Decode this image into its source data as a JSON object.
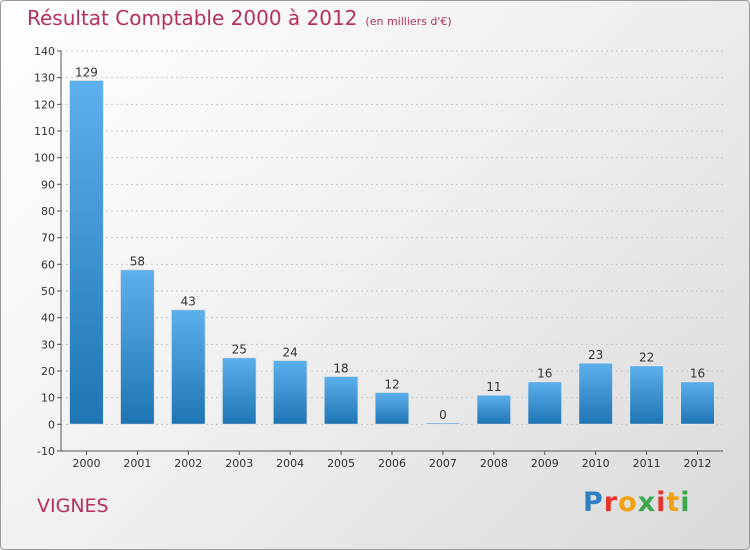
{
  "title": {
    "text": "Résultat Comptable 2000 à 2012",
    "unit": "(en milliers d'€)"
  },
  "commune": "VIGNES",
  "brand": "Proxiti",
  "colors": {
    "title": "#b5305a",
    "bar_light": "#5cb0ec",
    "bar_dark": "#1f74b4",
    "grid": "#c8c8c8",
    "axis": "#555555"
  },
  "chart_data": {
    "type": "bar",
    "categories": [
      "2000",
      "2001",
      "2002",
      "2003",
      "2004",
      "2005",
      "2006",
      "2007",
      "2008",
      "2009",
      "2010",
      "2011",
      "2012"
    ],
    "values": [
      129,
      58,
      43,
      25,
      24,
      18,
      12,
      0,
      11,
      16,
      23,
      22,
      16
    ],
    "ylim": [
      -10,
      140
    ],
    "yticks": [
      -10,
      0,
      10,
      20,
      30,
      40,
      50,
      60,
      70,
      80,
      90,
      100,
      110,
      120,
      130,
      140
    ],
    "grid": true
  }
}
